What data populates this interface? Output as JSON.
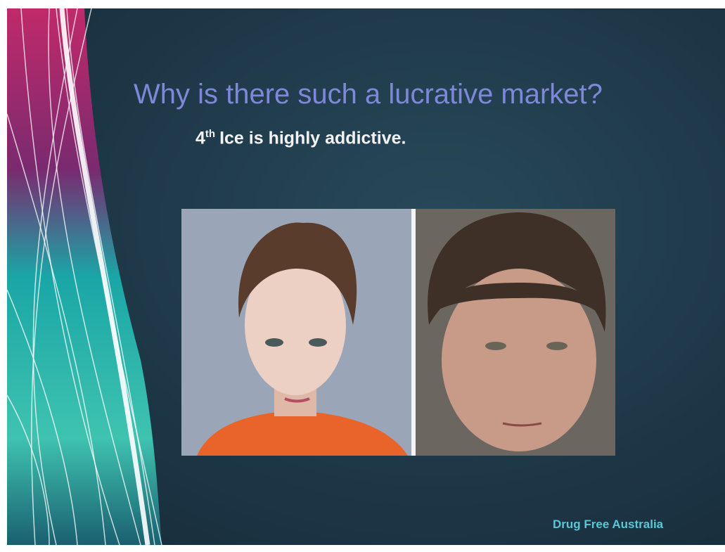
{
  "slide": {
    "title": "Why is there such a lucrative market?",
    "point": {
      "number": "4",
      "suffix": "th",
      "text": "Ice is highly addictive."
    },
    "footer": "Drug Free Australia"
  }
}
